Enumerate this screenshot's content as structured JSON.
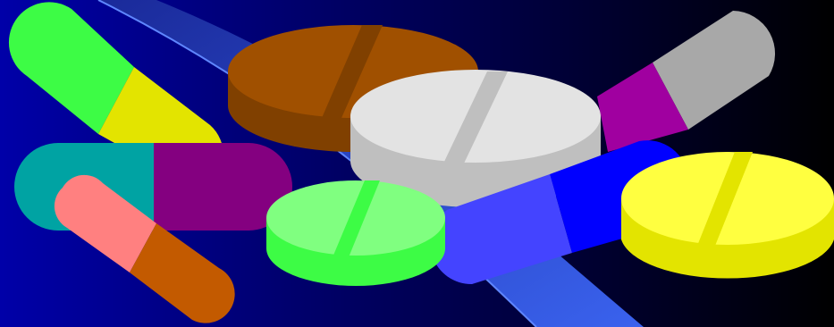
{
  "colors": {
    "background_start": "#0000a8",
    "background_end": "#000000",
    "swoosh_light": "#3a62ee",
    "swoosh_dark": "#2a44c4",
    "swoosh_edge": "#5f86ff",
    "pill_green": "#3dfc45",
    "pill_yellow": "#e3e400",
    "pill_teal": "#00a3a3",
    "pill_purple": "#840080",
    "pill_pink": "#ff8080",
    "pill_orange": "#c35a00",
    "pill_grey": "#a8a8a8",
    "pill_magenta": "#a000a0",
    "pill_blue": "#4444ff",
    "pill_bright_blue": "#0000ff",
    "tablet_brown_top": "#a05000",
    "tablet_brown_side": "#804000",
    "tablet_white_top": "#e3e3e3",
    "tablet_white_side": "#bfbfbf",
    "tablet_lightgreen_top": "#80ff80",
    "tablet_lightgreen_side": "#3dfc45",
    "tablet_yellow_top": "#ffff40",
    "tablet_yellow_side": "#e3e400"
  }
}
